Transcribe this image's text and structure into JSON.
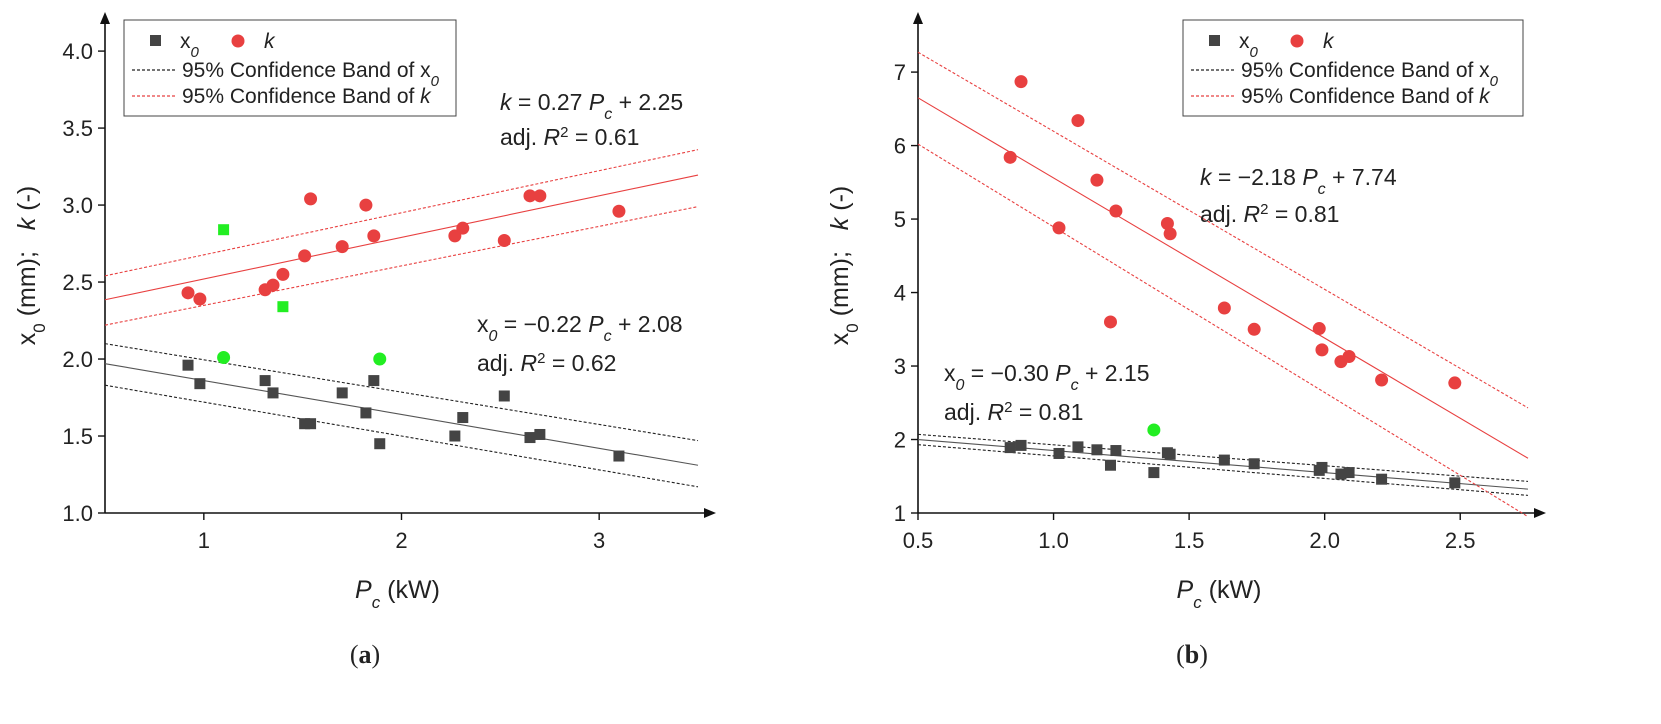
{
  "chart_data": [
    {
      "type": "scatter",
      "panel_label": "a",
      "xlabel": "kW",
      "xlabel_var": "P",
      "xlabel_sub": "c",
      "ylabel": "x0 (mm);   k (-)",
      "xlim": [
        0.5,
        3.5
      ],
      "ylim": [
        1.0,
        4.15
      ],
      "xticks": [
        1,
        2,
        3
      ],
      "xtick_labels": [
        "1",
        "2",
        "3"
      ],
      "yticks": [
        1.0,
        1.5,
        2.0,
        2.5,
        3.0,
        3.5,
        4.0
      ],
      "ytick_labels": [
        "1.0",
        "1.5",
        "2.0",
        "2.5",
        "3.0",
        "3.5",
        "4.0"
      ],
      "legend": {
        "position": "top-left",
        "items": [
          {
            "label": "x0",
            "symbol": "square",
            "color": "#444444"
          },
          {
            "label": "k",
            "symbol": "circle",
            "color": "#e84040"
          },
          {
            "label": "95% Confidence Band of x0",
            "symbol": "dash-black"
          },
          {
            "label": "95% Confidence Band of k",
            "symbol": "dash-red"
          }
        ]
      },
      "series": [
        {
          "name": "x0",
          "marker": "square",
          "color": "#444444",
          "points": [
            [
              0.92,
              1.96
            ],
            [
              0.98,
              1.84
            ],
            [
              1.31,
              1.86
            ],
            [
              1.35,
              1.78
            ],
            [
              1.51,
              1.58
            ],
            [
              1.54,
              1.58
            ],
            [
              1.7,
              1.78
            ],
            [
              1.82,
              1.65
            ],
            [
              1.86,
              1.86
            ],
            [
              1.89,
              1.45
            ],
            [
              2.27,
              1.5
            ],
            [
              2.31,
              1.62
            ],
            [
              2.52,
              1.76
            ],
            [
              2.65,
              1.49
            ],
            [
              2.7,
              1.51
            ],
            [
              3.1,
              1.37
            ]
          ]
        },
        {
          "name": "k",
          "marker": "circle",
          "color": "#e84040",
          "points": [
            [
              0.92,
              2.43
            ],
            [
              0.98,
              2.39
            ],
            [
              1.31,
              2.45
            ],
            [
              1.35,
              2.48
            ],
            [
              1.4,
              2.55
            ],
            [
              1.51,
              2.67
            ],
            [
              1.54,
              3.04
            ],
            [
              1.7,
              2.73
            ],
            [
              1.82,
              3.0
            ],
            [
              1.86,
              2.8
            ],
            [
              2.27,
              2.8
            ],
            [
              2.31,
              2.85
            ],
            [
              2.52,
              2.77
            ],
            [
              2.65,
              3.06
            ],
            [
              2.7,
              3.06
            ],
            [
              3.1,
              2.96
            ]
          ]
        },
        {
          "name": "outlier x0",
          "marker": "square",
          "color": "#22ee22",
          "points": [
            [
              1.1,
              2.84
            ],
            [
              1.4,
              2.34
            ]
          ]
        },
        {
          "name": "outlier k",
          "marker": "circle",
          "color": "#22ee22",
          "points": [
            [
              1.1,
              2.01
            ],
            [
              1.89,
              2.0
            ]
          ]
        }
      ],
      "fits": [
        {
          "name": "x0 fit",
          "slope": -0.22,
          "intercept": 2.08,
          "color": "#555555",
          "band_lower": [
            1.83,
            1.17
          ],
          "band_upper": [
            2.1,
            1.47
          ]
        },
        {
          "name": "k fit",
          "slope": 0.27,
          "intercept": 2.25,
          "color": "#e84040",
          "band_lower": [
            2.22,
            2.99
          ],
          "band_upper": [
            2.54,
            3.36
          ]
        }
      ],
      "annotations": [
        {
          "id": "k-eq",
          "var": "k",
          "text": " = 0.27 ",
          "pvar": "P",
          "psub": "c",
          "tail": " + 2.25"
        },
        {
          "id": "k-r2",
          "prefix": "adj. ",
          "rvar": "R",
          "rsup": "2",
          "tail": " = 0.61"
        },
        {
          "id": "x0-eq",
          "var": "x0",
          "text": " = −0.22 ",
          "pvar": "P",
          "psub": "c",
          "tail": " + 2.08"
        },
        {
          "id": "x0-r2",
          "prefix": "adj. ",
          "rvar": "R",
          "rsup": "2",
          "tail": " = 0.62"
        }
      ]
    },
    {
      "type": "scatter",
      "panel_label": "b",
      "xlabel": "kW",
      "xlabel_var": "P",
      "xlabel_sub": "c",
      "ylabel": "x0 (mm);   k (-)",
      "xlim": [
        0.5,
        2.75
      ],
      "ylim": [
        1.0,
        7.6
      ],
      "xticks": [
        0.5,
        1.0,
        1.5,
        2.0,
        2.5
      ],
      "xtick_labels": [
        "0.5",
        "1.0",
        "1.5",
        "2.0",
        "2.5"
      ],
      "yticks": [
        1,
        2,
        3,
        4,
        5,
        6,
        7
      ],
      "ytick_labels": [
        "1",
        "2",
        "3",
        "4",
        "5",
        "6",
        "7"
      ],
      "legend": {
        "position": "top-right",
        "items": [
          {
            "label": "x0",
            "symbol": "square",
            "color": "#444444"
          },
          {
            "label": "k",
            "symbol": "circle",
            "color": "#e84040"
          },
          {
            "label": "95% Confidence Band of x0",
            "symbol": "dash-black"
          },
          {
            "label": "95% Confidence Band of k",
            "symbol": "dash-red"
          }
        ]
      },
      "series": [
        {
          "name": "x0",
          "marker": "square",
          "color": "#444444",
          "points": [
            [
              0.84,
              1.89
            ],
            [
              0.88,
              1.92
            ],
            [
              1.02,
              1.81
            ],
            [
              1.09,
              1.9
            ],
            [
              1.16,
              1.86
            ],
            [
              1.21,
              1.65
            ],
            [
              1.23,
              1.85
            ],
            [
              1.37,
              1.55
            ],
            [
              1.42,
              1.82
            ],
            [
              1.43,
              1.8
            ],
            [
              1.63,
              1.72
            ],
            [
              1.74,
              1.67
            ],
            [
              1.98,
              1.58
            ],
            [
              1.99,
              1.62
            ],
            [
              2.06,
              1.53
            ],
            [
              2.09,
              1.55
            ],
            [
              2.21,
              1.46
            ],
            [
              2.48,
              1.41
            ]
          ]
        },
        {
          "name": "k",
          "marker": "circle",
          "color": "#e84040",
          "points": [
            [
              0.84,
              5.84
            ],
            [
              0.88,
              6.87
            ],
            [
              1.02,
              4.88
            ],
            [
              1.09,
              6.34
            ],
            [
              1.16,
              5.53
            ],
            [
              1.21,
              3.6
            ],
            [
              1.23,
              5.11
            ],
            [
              1.42,
              4.94
            ],
            [
              1.43,
              4.8
            ],
            [
              1.63,
              3.79
            ],
            [
              1.74,
              3.5
            ],
            [
              1.98,
              3.51
            ],
            [
              1.99,
              3.22
            ],
            [
              2.06,
              3.06
            ],
            [
              2.09,
              3.13
            ],
            [
              2.21,
              2.81
            ],
            [
              2.48,
              2.77
            ]
          ]
        },
        {
          "name": "outlier",
          "marker": "circle",
          "color": "#22ee22",
          "points": [
            [
              1.37,
              2.13
            ]
          ]
        }
      ],
      "fits": [
        {
          "name": "x0 fit",
          "slope": -0.3,
          "intercept": 2.15,
          "color": "#555555",
          "band_lower": [
            1.93,
            1.24
          ],
          "band_upper": [
            2.07,
            1.43
          ]
        },
        {
          "name": "k fit",
          "slope": -2.18,
          "intercept": 7.74,
          "color": "#e84040",
          "band_lower": [
            6.02,
            0.95
          ],
          "band_upper": [
            7.27,
            2.43
          ]
        }
      ],
      "annotations": [
        {
          "id": "k-eq",
          "var": "k",
          "text": " = −2.18 ",
          "pvar": "P",
          "psub": "c",
          "tail": " + 7.74"
        },
        {
          "id": "k-r2",
          "prefix": "adj. ",
          "rvar": "R",
          "rsup": "2",
          "tail": " = 0.81"
        },
        {
          "id": "x0-eq",
          "var": "x0",
          "text": " = −0.30 ",
          "pvar": "P",
          "psub": "c",
          "tail": " + 2.15"
        },
        {
          "id": "x0-r2",
          "prefix": "adj. ",
          "rvar": "R",
          "rsup": "2",
          "tail": " = 0.81"
        }
      ]
    }
  ]
}
